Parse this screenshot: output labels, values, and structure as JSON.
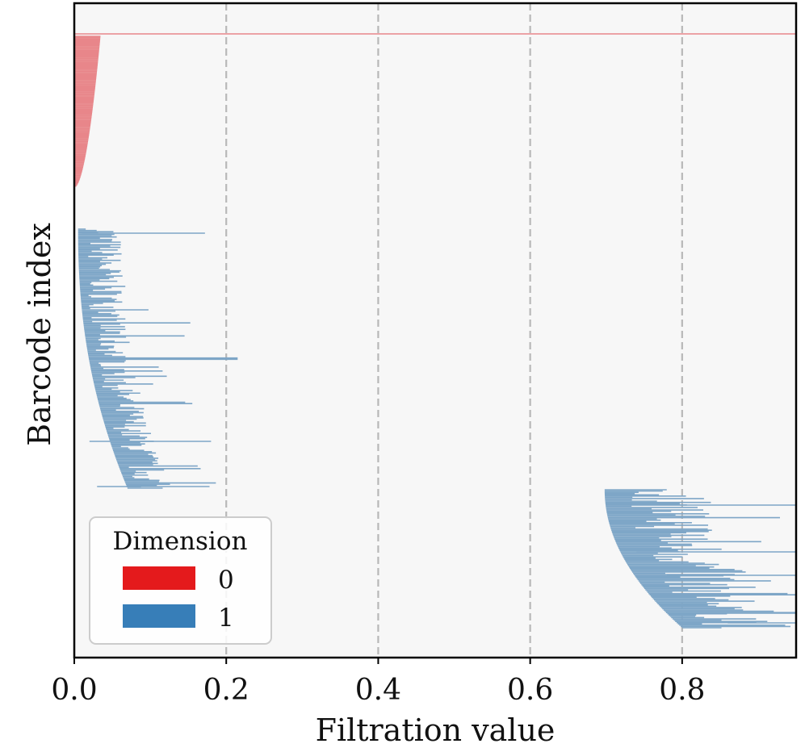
{
  "chart_data": {
    "type": "barcode",
    "xlabel": "Filtration value",
    "ylabel": "Barcode index",
    "xlim": [
      0.0,
      0.95
    ],
    "xticks": [
      {
        "value": 0.0,
        "label": "0.0"
      },
      {
        "value": 0.2,
        "label": "0.2"
      },
      {
        "value": 0.4,
        "label": "0.4"
      },
      {
        "value": 0.6,
        "label": "0.6"
      },
      {
        "value": 0.8,
        "label": "0.8"
      }
    ],
    "vlines": [
      0.2,
      0.4,
      0.6,
      0.8
    ],
    "grid": "vertical dashed lines at ticks",
    "legend": {
      "title": "Dimension",
      "position": "lower-left",
      "entries": [
        {
          "label": "0",
          "color": "#e41a1c"
        },
        {
          "label": "1",
          "color": "#377eb8"
        }
      ]
    },
    "colors": {
      "dim0": "#e8868a",
      "dim1": "#7ea6c7",
      "background": "#f7f7f7"
    },
    "series": [
      {
        "dimension": "0",
        "count": 130,
        "description_of_shape": "all bars born at 0.0; death decreasing from about 0.035 toward 0; one essential bar spanning to the right edge",
        "essential_bar": {
          "birth": 0.0,
          "death": 0.95
        },
        "births": [
          0.0,
          0.0
        ],
        "death_start": 0.034,
        "death_end": 0.0
      },
      {
        "dimension": "1",
        "group": "early",
        "count": 200,
        "birth_range": [
          0.005,
          0.07
        ],
        "typical_length": [
          0.01,
          0.06
        ],
        "max_death": 0.215,
        "max_death_at_fraction": 0.5
      },
      {
        "dimension": "1",
        "group": "late",
        "count": 110,
        "birth_range": [
          0.698,
          0.8
        ],
        "typical_length": [
          0.03,
          0.15
        ],
        "max_death": 0.95
      }
    ]
  }
}
